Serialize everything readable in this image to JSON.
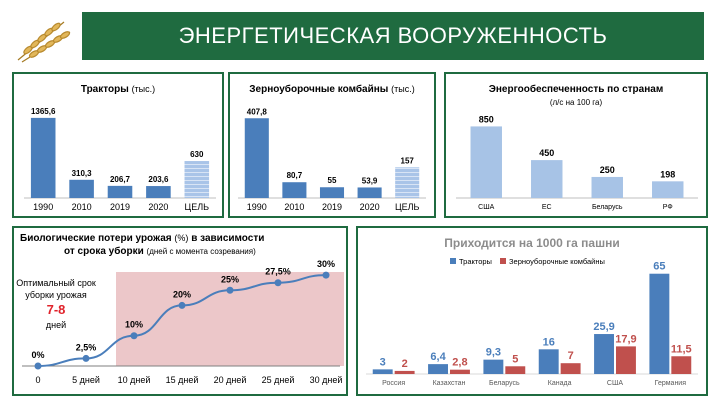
{
  "page": {
    "title": "ЭНЕРГЕТИЧЕСКАЯ ВООРУЖЕННОСТЬ"
  },
  "colors": {
    "banner": "#1f6b40",
    "tractors": "#4a7ebb",
    "combines": "#c0504d",
    "target": "#a9c4e8",
    "light_blue": "#a7c3e6",
    "zone": "#e7b9bb",
    "curve": "#4a7ebb"
  },
  "icons": {
    "logo": "wheat-icon"
  },
  "chart_data": [
    {
      "type": "bar",
      "title": "Тракторы",
      "title_unit": "(тыс.)",
      "categories": [
        "1990",
        "2010",
        "2019",
        "2020",
        "ЦЕЛЬ"
      ],
      "values": [
        1365.6,
        310.3,
        206.7,
        203.6,
        630
      ],
      "labels": [
        "1365,6",
        "310,3",
        "206,7",
        "203,6",
        "630"
      ],
      "ylim": [
        0,
        1500
      ]
    },
    {
      "type": "bar",
      "title": "Зерноуборочные комбайны",
      "title_unit": "(тыс.)",
      "categories": [
        "1990",
        "2010",
        "2019",
        "2020",
        "ЦЕЛЬ"
      ],
      "values": [
        407.8,
        80.7,
        55,
        53.9,
        157
      ],
      "labels": [
        "407,8",
        "80,7",
        "55",
        "53,9",
        "157"
      ],
      "ylim": [
        0,
        450
      ]
    },
    {
      "type": "bar",
      "title": "Энергообеспеченность  по странам",
      "subtitle": "(л/с на 100 га)",
      "categories": [
        "США",
        "ЕС",
        "Беларусь",
        "РФ"
      ],
      "values": [
        850,
        450,
        250,
        198
      ],
      "labels": [
        "850",
        "450",
        "250",
        "198"
      ],
      "ylim": [
        0,
        950
      ]
    },
    {
      "type": "line",
      "title": "Биологические  потери урожая",
      "title_unit": "(%)",
      "title_rest": "в зависимости",
      "title_line2": "от срока уборки",
      "subtitle": "(дней с момента созревания)",
      "categories": [
        "0",
        "5 дней",
        "10 дней",
        "15 дней",
        "20 дней",
        "25 дней",
        "30 дней"
      ],
      "values": [
        0,
        2.5,
        10,
        20,
        25,
        27.5,
        30
      ],
      "labels": [
        "0%",
        "2,5%",
        "10%",
        "20%",
        "25%",
        "27,5%",
        "30%"
      ],
      "ylim": [
        0,
        35
      ],
      "annotation": {
        "line1": "Оптимальный срок",
        "line2": "уборки урожая",
        "value": "7-8",
        "unit": "дней"
      }
    },
    {
      "type": "bar",
      "title": "Приходится на 1000 га пашни",
      "legend_position": "top",
      "categories": [
        "Россия",
        "Казахстан",
        "Беларусь",
        "Канада",
        "США",
        "Германия"
      ],
      "series": [
        {
          "name": "Тракторы",
          "values": [
            3,
            6.4,
            9.3,
            16,
            25.9,
            65
          ],
          "labels": [
            "3",
            "6,4",
            "9,3",
            "16",
            "25,9",
            "65"
          ]
        },
        {
          "name": "Зерноуборочные комбайны",
          "values": [
            2,
            2.8,
            5,
            7,
            17.9,
            11.5
          ],
          "labels": [
            "2",
            "2,8",
            "5",
            "7",
            "17,9",
            "11,5"
          ]
        }
      ],
      "ylim": [
        0,
        70
      ]
    }
  ]
}
